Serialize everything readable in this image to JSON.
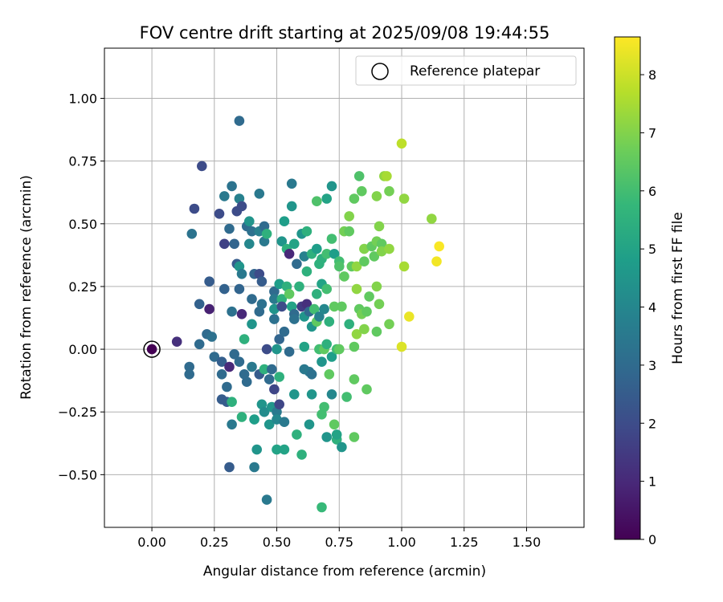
{
  "chart_data": {
    "type": "scatter",
    "title": "FOV centre drift starting at 2025/09/08 19:44:55",
    "xlabel": "Angular distance from reference (arcmin)",
    "ylabel": "Rotation from reference (arcmin)",
    "xlim": [
      -0.19,
      1.73
    ],
    "ylim": [
      -0.71,
      1.2
    ],
    "xticks": [
      0.0,
      0.25,
      0.5,
      0.75,
      1.0,
      1.25,
      1.5
    ],
    "xtick_labels": [
      "0.00",
      "0.25",
      "0.50",
      "0.75",
      "1.00",
      "1.25",
      "1.50"
    ],
    "yticks": [
      -0.5,
      -0.25,
      0.0,
      0.25,
      0.5,
      0.75,
      1.0
    ],
    "ytick_labels": [
      "−0.50",
      "−0.25",
      "0.00",
      "0.25",
      "0.50",
      "0.75",
      "1.00"
    ],
    "grid": true,
    "legend": {
      "position": "top-right",
      "entries": [
        "Reference platepar"
      ]
    },
    "reference_point": {
      "x": 0.0,
      "y": 0.0
    },
    "colorbar": {
      "label": "Hours from first FF file",
      "range": [
        0,
        8.65
      ],
      "ticks": [
        0,
        1,
        2,
        3,
        4,
        5,
        6,
        7,
        8
      ],
      "tick_labels": [
        "0",
        "1",
        "2",
        "3",
        "4",
        "5",
        "6",
        "7",
        "8"
      ],
      "colormap": "viridis"
    },
    "points": [
      [
        0.0,
        0.0,
        0.0
      ],
      [
        0.1,
        0.03,
        1.2
      ],
      [
        0.15,
        -0.1,
        3.0
      ],
      [
        0.15,
        -0.07,
        3.0
      ],
      [
        0.16,
        0.46,
        3.3
      ],
      [
        0.17,
        0.56,
        2.0
      ],
      [
        0.19,
        0.02,
        3.0
      ],
      [
        0.19,
        0.18,
        2.7
      ],
      [
        0.2,
        0.73,
        2.0
      ],
      [
        0.22,
        0.06,
        3.0
      ],
      [
        0.23,
        0.27,
        2.5
      ],
      [
        0.23,
        0.16,
        0.8
      ],
      [
        0.24,
        0.05,
        3.2
      ],
      [
        0.25,
        -0.03,
        3.0
      ],
      [
        0.27,
        0.54,
        2.0
      ],
      [
        0.28,
        -0.05,
        2.6
      ],
      [
        0.28,
        -0.1,
        3.0
      ],
      [
        0.28,
        -0.2,
        2.5
      ],
      [
        0.29,
        0.24,
        2.7
      ],
      [
        0.29,
        0.61,
        3.5
      ],
      [
        0.29,
        0.42,
        1.7
      ],
      [
        0.3,
        -0.21,
        2.5
      ],
      [
        0.3,
        -0.15,
        3.0
      ],
      [
        0.31,
        -0.47,
        2.5
      ],
      [
        0.31,
        0.48,
        3.0
      ],
      [
        0.31,
        -0.07,
        1.0
      ],
      [
        0.32,
        0.65,
        3.3
      ],
      [
        0.32,
        0.15,
        3.2
      ],
      [
        0.32,
        -0.3,
        3.5
      ],
      [
        0.32,
        -0.21,
        5.5
      ],
      [
        0.33,
        0.42,
        2.8
      ],
      [
        0.33,
        -0.02,
        3.0
      ],
      [
        0.34,
        0.55,
        2.0
      ],
      [
        0.34,
        0.34,
        2.5
      ],
      [
        0.35,
        0.91,
        3.0
      ],
      [
        0.35,
        0.6,
        3.8
      ],
      [
        0.35,
        0.33,
        4.5
      ],
      [
        0.35,
        0.24,
        2.8
      ],
      [
        0.35,
        -0.05,
        3.0
      ],
      [
        0.36,
        0.57,
        2.0
      ],
      [
        0.36,
        0.3,
        3.5
      ],
      [
        0.36,
        0.14,
        1.0
      ],
      [
        0.36,
        -0.27,
        5.5
      ],
      [
        0.37,
        0.04,
        5.5
      ],
      [
        0.37,
        -0.1,
        3.0
      ],
      [
        0.38,
        0.49,
        3.0
      ],
      [
        0.38,
        -0.13,
        3.0
      ],
      [
        0.39,
        0.51,
        4.5
      ],
      [
        0.39,
        0.42,
        4.0
      ],
      [
        0.4,
        0.47,
        3.2
      ],
      [
        0.4,
        0.2,
        3.0
      ],
      [
        0.4,
        0.1,
        4.5
      ],
      [
        0.4,
        -0.07,
        3.5
      ],
      [
        0.41,
        -0.28,
        4.8
      ],
      [
        0.41,
        0.3,
        2.8
      ],
      [
        0.41,
        -0.47,
        3.5
      ],
      [
        0.42,
        -0.4,
        4.5
      ],
      [
        0.43,
        0.47,
        3.8
      ],
      [
        0.43,
        0.62,
        3.5
      ],
      [
        0.43,
        0.3,
        2.0
      ],
      [
        0.43,
        0.15,
        3.0
      ],
      [
        0.43,
        -0.1,
        2.5
      ],
      [
        0.44,
        0.18,
        3.2
      ],
      [
        0.44,
        0.27,
        2.5
      ],
      [
        0.44,
        -0.22,
        4.5
      ],
      [
        0.45,
        0.49,
        3.0
      ],
      [
        0.45,
        0.43,
        3.5
      ],
      [
        0.45,
        -0.08,
        5.5
      ],
      [
        0.45,
        -0.25,
        4.2
      ],
      [
        0.46,
        0.46,
        5.5
      ],
      [
        0.46,
        -0.6,
        3.5
      ],
      [
        0.46,
        0.0,
        2.0
      ],
      [
        0.47,
        -0.3,
        4.5
      ],
      [
        0.47,
        -0.12,
        3.0
      ],
      [
        0.48,
        -0.08,
        3.0
      ],
      [
        0.48,
        -0.23,
        4.5
      ],
      [
        0.49,
        0.16,
        4.5
      ],
      [
        0.49,
        0.23,
        3.0
      ],
      [
        0.49,
        0.2,
        3.5
      ],
      [
        0.49,
        0.12,
        3.2
      ],
      [
        0.49,
        -0.16,
        1.8
      ],
      [
        0.5,
        -0.25,
        3.5
      ],
      [
        0.5,
        -0.4,
        5.0
      ],
      [
        0.5,
        -0.28,
        4.0
      ],
      [
        0.5,
        0.0,
        4.5
      ],
      [
        0.51,
        0.26,
        4.8
      ],
      [
        0.51,
        0.04,
        2.8
      ],
      [
        0.51,
        -0.11,
        5.5
      ],
      [
        0.51,
        -0.22,
        1.8
      ],
      [
        0.52,
        0.43,
        4.5
      ],
      [
        0.52,
        0.2,
        5.5
      ],
      [
        0.52,
        0.17,
        2.0
      ],
      [
        0.53,
        0.51,
        4.8
      ],
      [
        0.53,
        -0.4,
        5.0
      ],
      [
        0.53,
        -0.29,
        3.5
      ],
      [
        0.53,
        0.07,
        3.0
      ],
      [
        0.54,
        0.25,
        5.5
      ],
      [
        0.54,
        0.4,
        5.5
      ],
      [
        0.55,
        0.38,
        1.0
      ],
      [
        0.55,
        -0.01,
        3.0
      ],
      [
        0.55,
        0.22,
        6.5
      ],
      [
        0.56,
        0.66,
        3.5
      ],
      [
        0.56,
        0.57,
        4.5
      ],
      [
        0.56,
        0.17,
        5.0
      ],
      [
        0.57,
        0.14,
        3.0
      ],
      [
        0.57,
        -0.18,
        4.5
      ],
      [
        0.57,
        0.12,
        3.2
      ],
      [
        0.57,
        0.42,
        5.0
      ],
      [
        0.58,
        0.34,
        3.0
      ],
      [
        0.58,
        -0.34,
        5.5
      ],
      [
        0.59,
        0.25,
        5.5
      ],
      [
        0.6,
        -0.42,
        5.5
      ],
      [
        0.6,
        0.17,
        1.5
      ],
      [
        0.6,
        0.46,
        4.5
      ],
      [
        0.61,
        0.13,
        4.5
      ],
      [
        0.61,
        -0.08,
        3.5
      ],
      [
        0.61,
        0.37,
        3.8
      ],
      [
        0.61,
        0.01,
        5.0
      ],
      [
        0.62,
        0.47,
        5.5
      ],
      [
        0.62,
        0.31,
        5.5
      ],
      [
        0.62,
        0.18,
        1.2
      ],
      [
        0.63,
        -0.3,
        4.5
      ],
      [
        0.63,
        -0.09,
        3.5
      ],
      [
        0.63,
        0.15,
        3.0
      ],
      [
        0.64,
        0.38,
        5.5
      ],
      [
        0.64,
        0.09,
        4.5
      ],
      [
        0.64,
        -0.1,
        3.2
      ],
      [
        0.64,
        -0.18,
        4.5
      ],
      [
        0.65,
        0.16,
        6.0
      ],
      [
        0.66,
        0.59,
        6.2
      ],
      [
        0.66,
        0.4,
        4.8
      ],
      [
        0.66,
        0.22,
        5.5
      ],
      [
        0.66,
        0.11,
        6.5
      ],
      [
        0.67,
        0.34,
        5.5
      ],
      [
        0.67,
        0.13,
        3.8
      ],
      [
        0.67,
        0.0,
        6.0
      ],
      [
        0.68,
        -0.63,
        5.8
      ],
      [
        0.68,
        -0.26,
        6.0
      ],
      [
        0.68,
        0.26,
        5.0
      ],
      [
        0.68,
        0.36,
        5.5
      ],
      [
        0.68,
        -0.05,
        4.5
      ],
      [
        0.69,
        0.16,
        4.0
      ],
      [
        0.69,
        0.0,
        6.5
      ],
      [
        0.69,
        -0.23,
        6.0
      ],
      [
        0.7,
        0.6,
        5.0
      ],
      [
        0.7,
        0.38,
        6.0
      ],
      [
        0.7,
        0.24,
        6.0
      ],
      [
        0.7,
        0.02,
        5.5
      ],
      [
        0.7,
        -0.35,
        4.5
      ],
      [
        0.71,
        0.11,
        5.5
      ],
      [
        0.71,
        -0.1,
        6.5
      ],
      [
        0.72,
        0.65,
        4.5
      ],
      [
        0.72,
        0.44,
        6.0
      ],
      [
        0.72,
        -0.03,
        4.8
      ],
      [
        0.72,
        -0.18,
        4.0
      ],
      [
        0.73,
        0.38,
        4.8
      ],
      [
        0.73,
        -0.3,
        6.5
      ],
      [
        0.73,
        0.17,
        6.5
      ],
      [
        0.74,
        -0.36,
        5.5
      ],
      [
        0.74,
        -0.34,
        5.0
      ],
      [
        0.74,
        0.0,
        6.0
      ],
      [
        0.75,
        0.35,
        6.0
      ],
      [
        0.75,
        0.0,
        6.5
      ],
      [
        0.75,
        0.33,
        6.2
      ],
      [
        0.76,
        -0.39,
        4.5
      ],
      [
        0.76,
        0.17,
        6.5
      ],
      [
        0.77,
        0.29,
        6.5
      ],
      [
        0.77,
        0.47,
        6.8
      ],
      [
        0.78,
        -0.19,
        6.0
      ],
      [
        0.79,
        0.53,
        7.0
      ],
      [
        0.79,
        0.1,
        5.5
      ],
      [
        0.79,
        0.47,
        6.5
      ],
      [
        0.8,
        0.33,
        6.5
      ],
      [
        0.81,
        -0.35,
        6.5
      ],
      [
        0.81,
        0.01,
        6.5
      ],
      [
        0.81,
        0.6,
        6.5
      ],
      [
        0.81,
        -0.12,
        6.5
      ],
      [
        0.82,
        0.33,
        7.2
      ],
      [
        0.82,
        0.24,
        7.2
      ],
      [
        0.82,
        0.06,
        7.2
      ],
      [
        0.83,
        0.69,
        6.2
      ],
      [
        0.83,
        0.16,
        6.5
      ],
      [
        0.84,
        0.63,
        6.5
      ],
      [
        0.84,
        0.14,
        6.8
      ],
      [
        0.85,
        0.4,
        7.0
      ],
      [
        0.85,
        0.08,
        7.0
      ],
      [
        0.85,
        0.35,
        6.5
      ],
      [
        0.86,
        0.15,
        6.5
      ],
      [
        0.86,
        -0.16,
        6.5
      ],
      [
        0.87,
        0.21,
        6.5
      ],
      [
        0.88,
        0.41,
        6.5
      ],
      [
        0.89,
        0.37,
        6.5
      ],
      [
        0.9,
        0.61,
        7.0
      ],
      [
        0.9,
        0.43,
        6.8
      ],
      [
        0.9,
        0.07,
        6.5
      ],
      [
        0.9,
        0.25,
        7.0
      ],
      [
        0.91,
        0.49,
        7.0
      ],
      [
        0.91,
        0.18,
        6.8
      ],
      [
        0.92,
        0.42,
        6.5
      ],
      [
        0.92,
        0.39,
        7.0
      ],
      [
        0.93,
        0.69,
        7.2
      ],
      [
        0.94,
        0.69,
        7.5
      ],
      [
        0.95,
        0.63,
        6.8
      ],
      [
        0.95,
        0.4,
        7.2
      ],
      [
        0.95,
        0.1,
        6.8
      ],
      [
        1.0,
        0.82,
        7.8
      ],
      [
        1.0,
        0.01,
        8.2
      ],
      [
        1.01,
        0.6,
        7.2
      ],
      [
        1.01,
        0.33,
        7.5
      ],
      [
        1.03,
        0.13,
        8.4
      ],
      [
        1.12,
        0.52,
        7.2
      ],
      [
        1.14,
        0.35,
        8.5
      ],
      [
        1.15,
        0.41,
        8.6
      ]
    ]
  }
}
